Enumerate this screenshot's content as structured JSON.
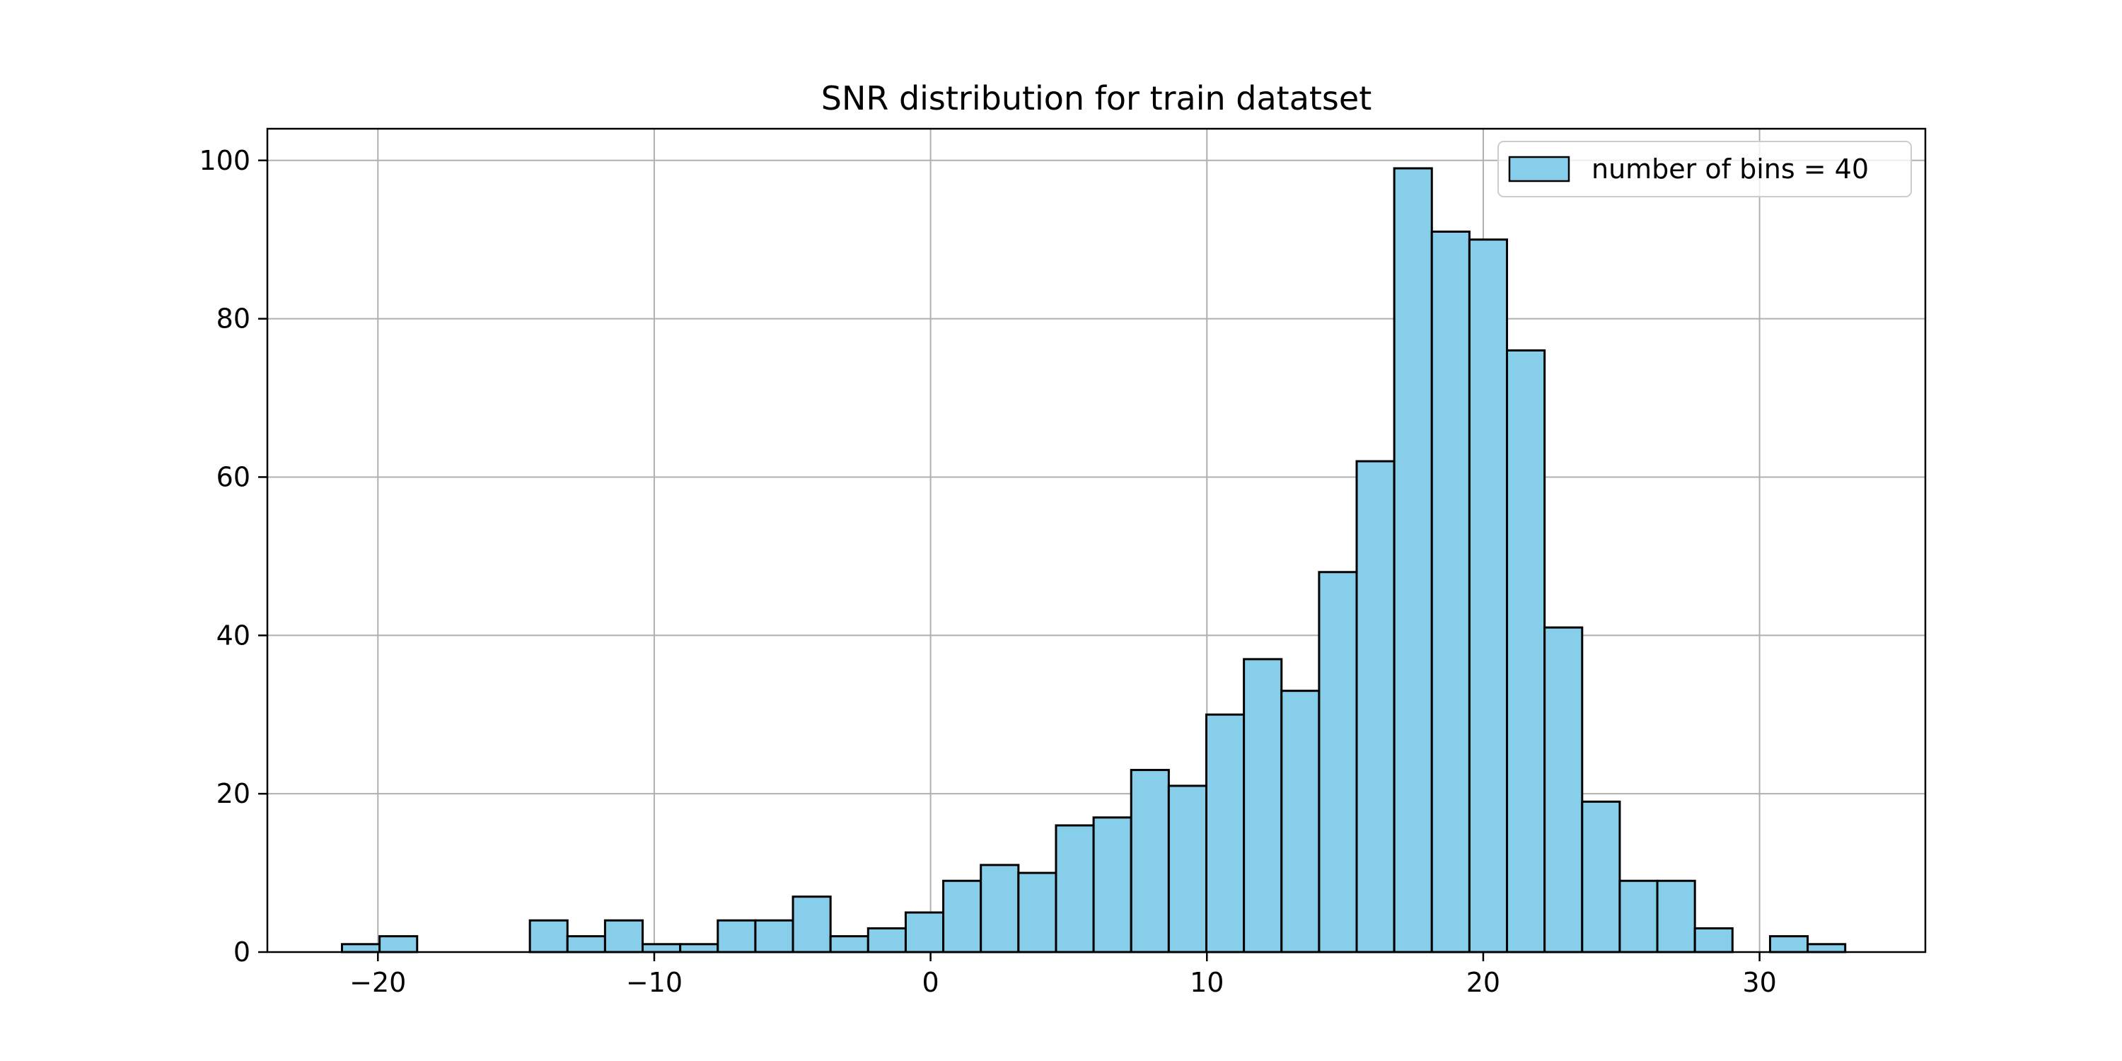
{
  "chart_data": {
    "type": "bar",
    "title": "SNR distribution for train datatset",
    "xlabel": "",
    "ylabel": "",
    "xlim": [
      -24,
      36
    ],
    "ylim": [
      0,
      104
    ],
    "grid": true,
    "bin_start": -21.3,
    "bin_width": 1.36,
    "counts": [
      1,
      2,
      0,
      0,
      0,
      4,
      2,
      4,
      1,
      1,
      4,
      4,
      7,
      2,
      3,
      5,
      9,
      11,
      10,
      16,
      17,
      23,
      21,
      30,
      37,
      33,
      48,
      62,
      99,
      91,
      90,
      76,
      41,
      19,
      9,
      9,
      3,
      0,
      2,
      1
    ],
    "x_ticks": [
      {
        "value": -20,
        "label": "−20"
      },
      {
        "value": -10,
        "label": "−10"
      },
      {
        "value": 0,
        "label": "0"
      },
      {
        "value": 10,
        "label": "10"
      },
      {
        "value": 20,
        "label": "20"
      },
      {
        "value": 30,
        "label": "30"
      }
    ],
    "y_ticks": [
      {
        "value": 0,
        "label": "0"
      },
      {
        "value": 20,
        "label": "20"
      },
      {
        "value": 40,
        "label": "40"
      },
      {
        "value": 60,
        "label": "60"
      },
      {
        "value": 80,
        "label": "80"
      },
      {
        "value": 100,
        "label": "100"
      }
    ],
    "legend": {
      "label": "number of bins = 40",
      "placement": "top-right"
    },
    "colors": {
      "bar_fill": "#87ceeb",
      "bar_edge": "#000000",
      "grid": "#b0b0b0"
    }
  }
}
